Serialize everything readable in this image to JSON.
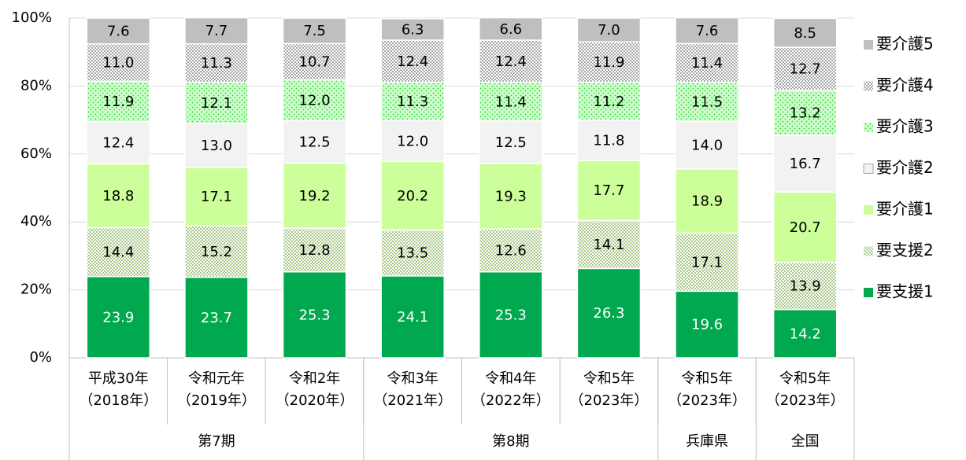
{
  "chart_data": {
    "type": "stacked_bar",
    "categories": [
      "平成30年\n（2018年）",
      "令和元年\n（2019年）",
      "令和2年\n（2020年）",
      "令和3年\n（2021年）",
      "令和4年\n（2022年）",
      "令和5年\n（2023年）",
      "令和5年\n（2023年）",
      "令和5年\n（2023年）"
    ],
    "groups": [
      {
        "name": "第7期",
        "size": 3
      },
      {
        "name": "第8期",
        "size": 3
      },
      {
        "name": "兵庫県",
        "size": 1
      },
      {
        "name": "全国",
        "size": 1
      }
    ],
    "series": [
      {
        "name": "要支援1",
        "color": "#00a84f",
        "pattern": "solid",
        "label_color": "#ffffff",
        "values": [
          23.9,
          23.7,
          25.3,
          24.1,
          25.3,
          26.3,
          19.6,
          14.2
        ],
        "value_labels": [
          "23.9",
          "23.7",
          "25.3",
          "24.1",
          "25.3",
          "26.3",
          "19.6",
          "14.2"
        ]
      },
      {
        "name": "要支援2",
        "color": "#a9c98a",
        "pattern": "crosshatch",
        "label_color": "#000000",
        "values": [
          14.4,
          15.2,
          12.8,
          13.5,
          12.6,
          14.1,
          17.1,
          13.9
        ],
        "value_labels": [
          "14.4",
          "15.2",
          "12.8",
          "13.5",
          "12.6",
          "14.1",
          "17.1",
          "13.9"
        ]
      },
      {
        "name": "要介護1",
        "color": "#ccff99",
        "pattern": "solid",
        "label_color": "#000000",
        "values": [
          18.8,
          17.1,
          19.2,
          20.2,
          19.3,
          17.7,
          18.9,
          20.7
        ],
        "value_labels": [
          "18.8",
          "17.1",
          "19.2",
          "20.2",
          "19.3",
          "17.7",
          "18.9",
          "20.7"
        ]
      },
      {
        "name": "要介護2",
        "color": "#f2f2f2",
        "pattern": "solid",
        "label_color": "#000000",
        "values": [
          12.4,
          13.0,
          12.5,
          12.0,
          12.5,
          11.8,
          14.0,
          16.7
        ],
        "value_labels": [
          "12.4",
          "13.0",
          "12.5",
          "12.0",
          "12.5",
          "11.8",
          "14.0",
          "16.7"
        ]
      },
      {
        "name": "要介護3",
        "color": "#ccffcc",
        "pattern": "dots",
        "label_color": "#000000",
        "values": [
          11.9,
          12.1,
          12.0,
          11.3,
          11.4,
          11.2,
          11.5,
          13.2
        ],
        "value_labels": [
          "11.9",
          "12.1",
          "12.0",
          "11.3",
          "11.4",
          "11.2",
          "11.5",
          "13.2"
        ]
      },
      {
        "name": "要介護4",
        "color": "#a6a6a6",
        "pattern": "crosshatch",
        "label_color": "#000000",
        "values": [
          11.0,
          11.3,
          10.7,
          12.4,
          12.4,
          11.9,
          11.4,
          12.7
        ],
        "value_labels": [
          "11.0",
          "11.3",
          "10.7",
          "12.4",
          "12.4",
          "11.9",
          "11.4",
          "12.7"
        ]
      },
      {
        "name": "要介護5",
        "color": "#bfbfbf",
        "pattern": "solid",
        "label_color": "#000000",
        "values": [
          7.6,
          7.7,
          7.5,
          6.3,
          6.6,
          7.0,
          7.6,
          8.5
        ],
        "value_labels": [
          "7.6",
          "7.7",
          "7.5",
          "6.3",
          "6.6",
          "7.0",
          "7.6",
          "8.5"
        ]
      }
    ],
    "ylim": [
      0,
      100
    ],
    "yticks": [
      {
        "value": 0,
        "label": "0%"
      },
      {
        "value": 20,
        "label": "20%"
      },
      {
        "value": 40,
        "label": "40%"
      },
      {
        "value": 60,
        "label": "60%"
      },
      {
        "value": 80,
        "label": "80%"
      },
      {
        "value": 100,
        "label": "100%"
      }
    ],
    "grid": true,
    "legend": "right"
  }
}
